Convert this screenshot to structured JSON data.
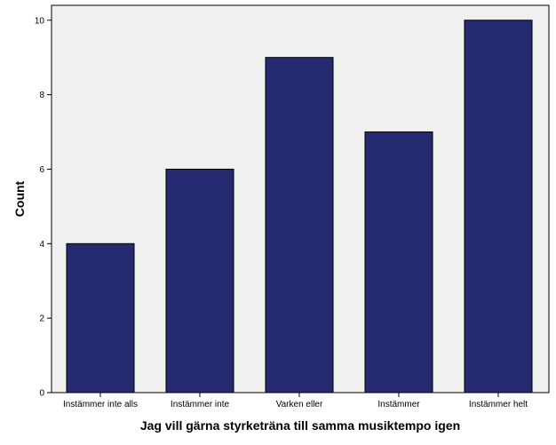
{
  "chart_data": {
    "type": "bar",
    "categories": [
      "Instämmer inte alls",
      "Instämmer inte",
      "Varken eller",
      "Instämmer",
      "Instämmer helt"
    ],
    "values": [
      4,
      6,
      9,
      7,
      10
    ],
    "xlabel": "Jag vill gärna styrketräna till samma musiktempo igen",
    "ylabel": "Count",
    "ylim": [
      0,
      10.4
    ],
    "yticks": [
      0,
      2,
      4,
      6,
      8,
      10
    ],
    "grid": false,
    "colors": {
      "bar": "#262a70",
      "plot_background": "#f0f0f0",
      "bar_edge": "#000000"
    }
  }
}
